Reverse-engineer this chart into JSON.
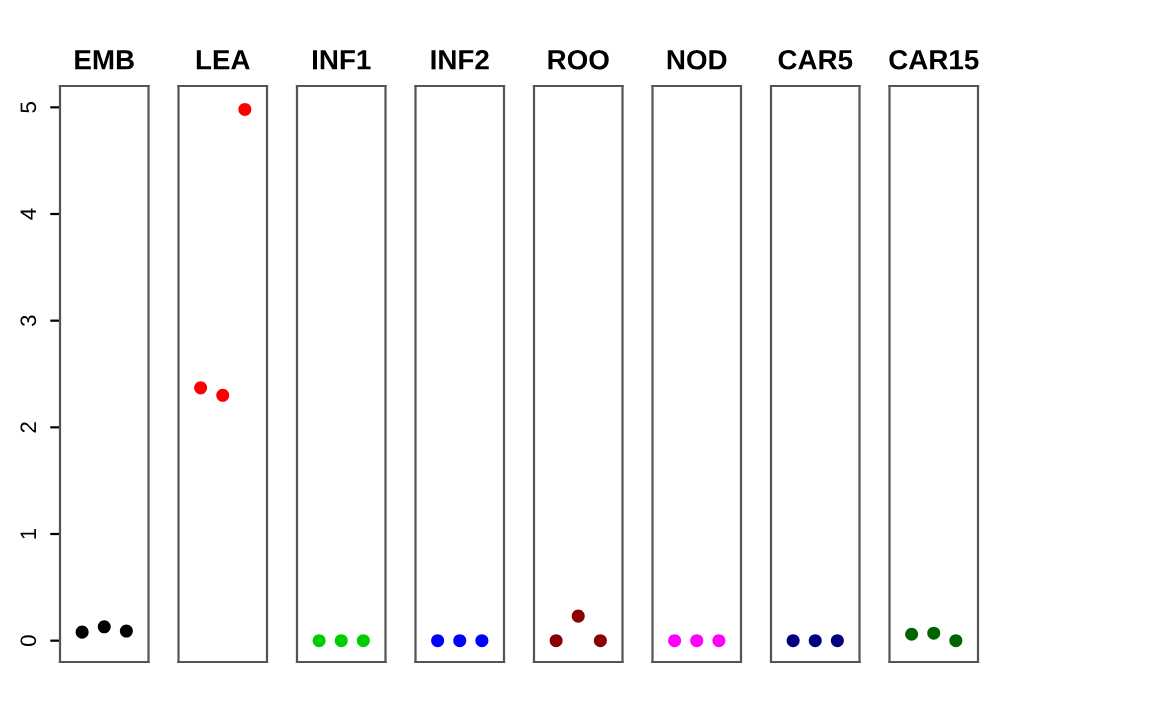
{
  "chart_data": {
    "type": "scatter",
    "categories": [
      "EMB",
      "LEA",
      "INF1",
      "INF2",
      "ROO",
      "NOD",
      "CAR5",
      "CAR15"
    ],
    "marker": "circle",
    "ylim": [
      -0.2,
      5.2
    ],
    "yticks": [
      0,
      1,
      2,
      3,
      4,
      5
    ],
    "grid": false,
    "series": [
      {
        "colors": [
          "#000000",
          "#ff0000",
          "#00cd00",
          "#0000ff",
          "#8b0000",
          "#ff00ff",
          "#000080",
          "#006400"
        ],
        "values": [
          0.08,
          2.37,
          0,
          0,
          0,
          0,
          0,
          0.06
        ]
      },
      {
        "colors": [
          "#000000",
          "#ff0000",
          "#00cd00",
          "#0000ff",
          "#8b0000",
          "#ff00ff",
          "#000080",
          "#006400"
        ],
        "values": [
          0.13,
          2.3,
          0,
          0,
          0.23,
          0,
          0,
          0.07
        ]
      },
      {
        "colors": [
          "#000000",
          "#ff0000",
          "#00cd00",
          "#0000ff",
          "#8b0000",
          "#ff00ff",
          "#000080",
          "#006400"
        ],
        "values": [
          0.09,
          4.98,
          0,
          0,
          0,
          0,
          0,
          0.0
        ]
      }
    ]
  }
}
